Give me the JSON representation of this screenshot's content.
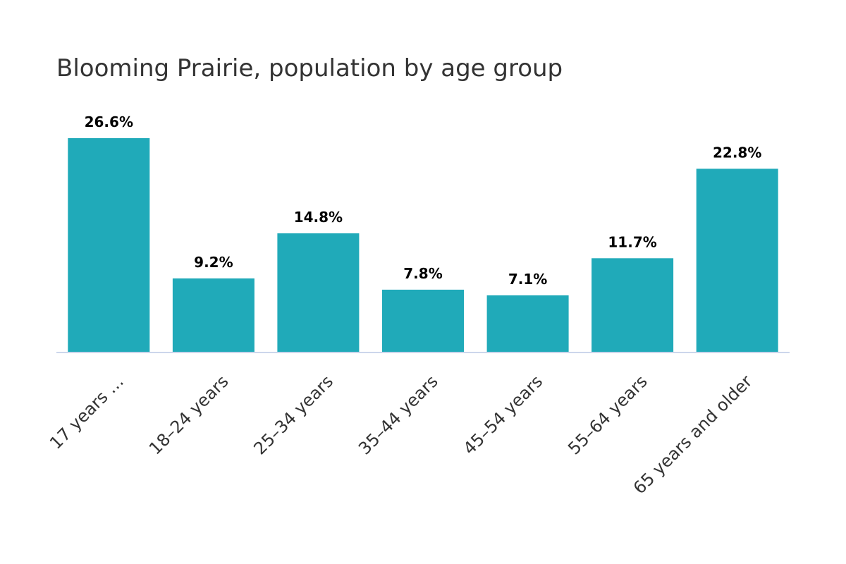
{
  "chart_data": {
    "type": "bar",
    "title": "Blooming Prairie, population by age group",
    "categories": [
      "17 years …",
      "18–24 years",
      "25–34 years",
      "35–44 years",
      "45–54 years",
      "55–64 years",
      "65 years and older"
    ],
    "values": [
      26.6,
      9.2,
      14.8,
      7.8,
      7.1,
      11.7,
      22.8
    ],
    "value_labels": [
      "26.6%",
      "9.2%",
      "14.8%",
      "7.8%",
      "7.1%",
      "11.7%",
      "22.8%"
    ],
    "xlabel": "",
    "ylabel": "",
    "ylim": [
      0,
      26.6
    ],
    "grid": false,
    "legend": "none",
    "bar_color": "#20aab9",
    "axis_color": "#ccd6eb"
  }
}
